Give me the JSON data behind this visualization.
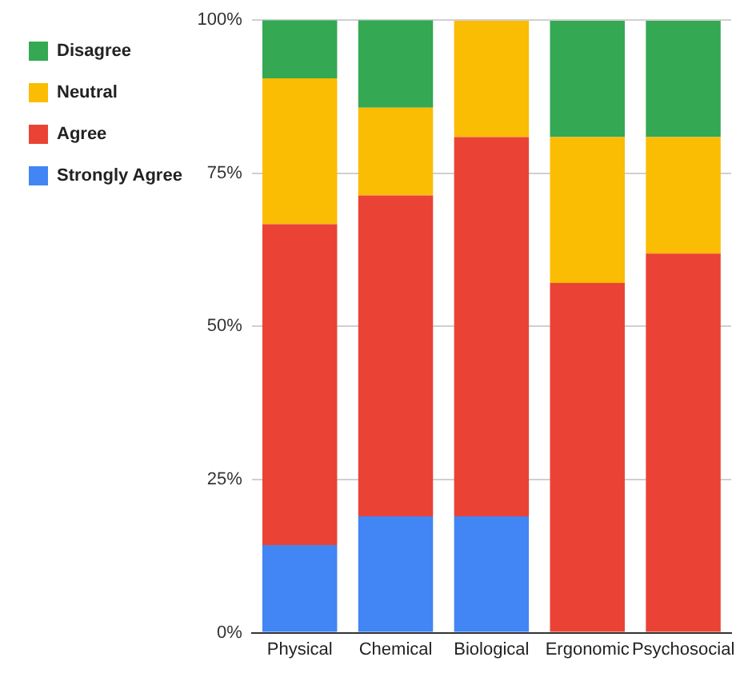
{
  "chart_data": {
    "type": "bar",
    "stacked": true,
    "categories": [
      "Physical",
      "Chemical",
      "Biological",
      "Ergonomic",
      "Psychosocial"
    ],
    "series": [
      {
        "name": "Strongly Agree",
        "color": "#4285f4",
        "values": [
          14.3,
          19,
          19,
          0,
          0
        ]
      },
      {
        "name": "Agree",
        "color": "#ea4335",
        "values": [
          52.4,
          52.4,
          61.9,
          57.1,
          61.9
        ]
      },
      {
        "name": "Neutral",
        "color": "#fbbc04",
        "values": [
          23.8,
          14.3,
          19,
          23.8,
          19
        ]
      },
      {
        "name": "Disagree",
        "color": "#34a853",
        "values": [
          9.5,
          14.3,
          0,
          19,
          19
        ]
      }
    ],
    "ylim": [
      0,
      100
    ],
    "yticks": [
      {
        "value": 0,
        "label": "0%"
      },
      {
        "value": 25,
        "label": "25%"
      },
      {
        "value": 50,
        "label": "50%"
      },
      {
        "value": 75,
        "label": "75%"
      },
      {
        "value": 100,
        "label": "100%"
      }
    ],
    "grid": "y",
    "legend": "top left"
  }
}
